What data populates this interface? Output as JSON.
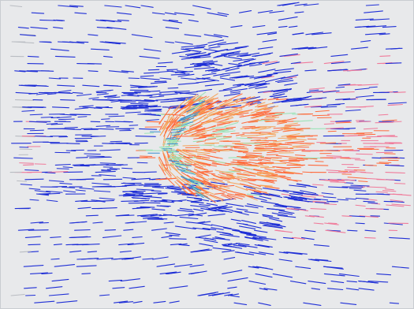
{
  "scene": {
    "background_color": "#e8e9eb",
    "border_color": "#c9ccd1",
    "color_map": {
      "low": "#1f2fd6",
      "mid_low": "#3a8fd0",
      "mid": "#9be3b8",
      "mid_high": "#f5a35a",
      "high": "#ff6a3d",
      "outer_warm": "#f07a9a",
      "faint": "#b9bcc2"
    }
  }
}
